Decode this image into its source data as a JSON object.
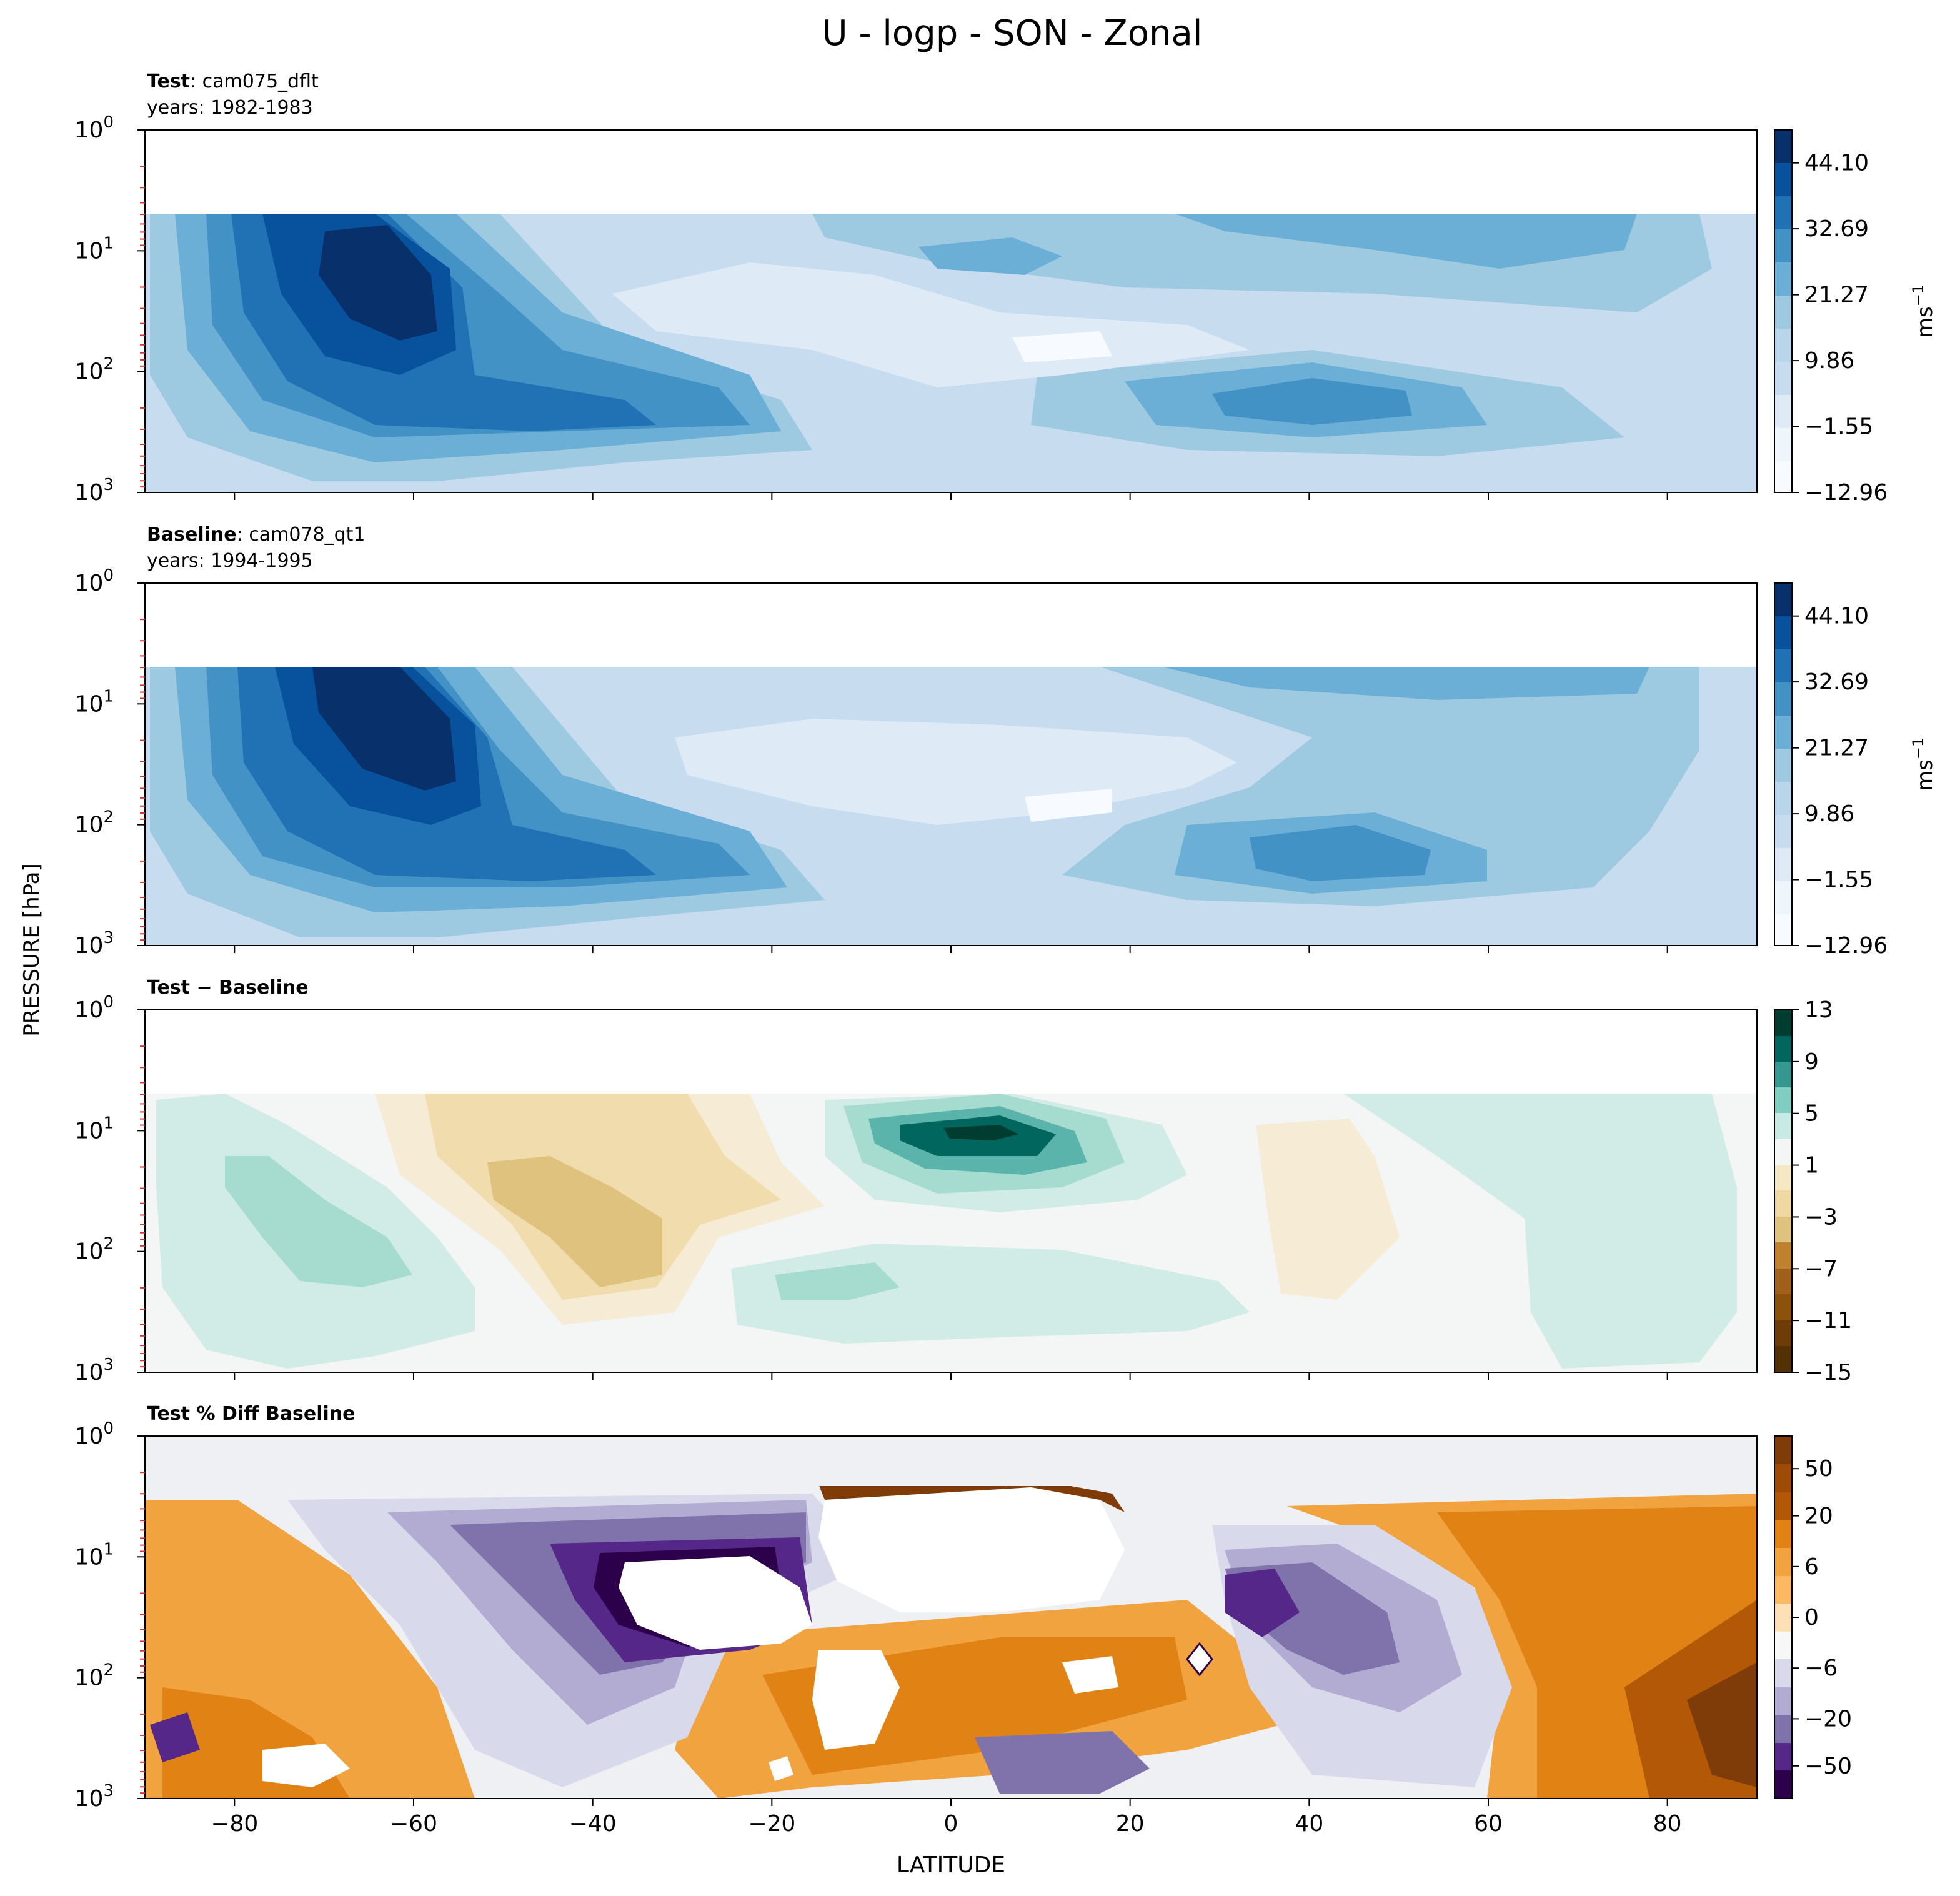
{
  "figure": {
    "title": "U - logp - SON - Zonal",
    "ylabel": "PRESSURE [hPa]",
    "xlabel": "LATITUDE",
    "x_ticks": [
      "−80",
      "−60",
      "−40",
      "−20",
      "0",
      "20",
      "40",
      "60",
      "80"
    ],
    "y_ticks": [
      {
        "base": "10",
        "exp": "0"
      },
      {
        "base": "10",
        "exp": "1"
      },
      {
        "base": "10",
        "exp": "2"
      },
      {
        "base": "10",
        "exp": "3"
      }
    ],
    "units": {
      "base": "ms",
      "exp": "−1"
    }
  },
  "chart_data": [
    {
      "type": "heatmap",
      "panel": "test",
      "label_bold": "Test",
      "label_rest": ": cam075_dflt",
      "years": "years: 1982-1983",
      "colormap": "Blues",
      "colorbar_ticks": [
        "44.10",
        "32.69",
        "21.27",
        "9.86",
        "−1.55",
        "−12.96"
      ],
      "colorbar_range": [
        -12.96,
        49.8
      ],
      "xlim": [
        -90,
        90
      ],
      "ylim_hpa": [
        1000,
        1
      ],
      "log_y": true
    },
    {
      "type": "heatmap",
      "panel": "baseline",
      "label_bold": "Baseline",
      "label_rest": ": cam078_qt1",
      "years": "years: 1994-1995",
      "colormap": "Blues",
      "colorbar_ticks": [
        "44.10",
        "32.69",
        "21.27",
        "9.86",
        "−1.55",
        "−12.96"
      ],
      "colorbar_range": [
        -12.96,
        49.8
      ],
      "xlim": [
        -90,
        90
      ],
      "ylim_hpa": [
        1000,
        1
      ],
      "log_y": true
    },
    {
      "type": "heatmap",
      "panel": "diff",
      "label_bold": "Test − Baseline",
      "colormap": "BrBG",
      "colorbar_ticks": [
        "13",
        "9",
        "5",
        "1",
        "−3",
        "−7",
        "−11",
        "−15"
      ],
      "colorbar_range": [
        -15,
        13
      ],
      "xlim": [
        -90,
        90
      ],
      "ylim_hpa": [
        1000,
        1
      ],
      "log_y": true
    },
    {
      "type": "heatmap",
      "panel": "pctdiff",
      "label_bold": "Test % Diff Baseline",
      "colormap": "PuOr",
      "colorbar_ticks": [
        "50",
        "20",
        "6",
        "0",
        "−6",
        "−20",
        "−50"
      ],
      "xlim": [
        -90,
        90
      ],
      "ylim_hpa": [
        1000,
        1
      ],
      "log_y": true
    }
  ]
}
